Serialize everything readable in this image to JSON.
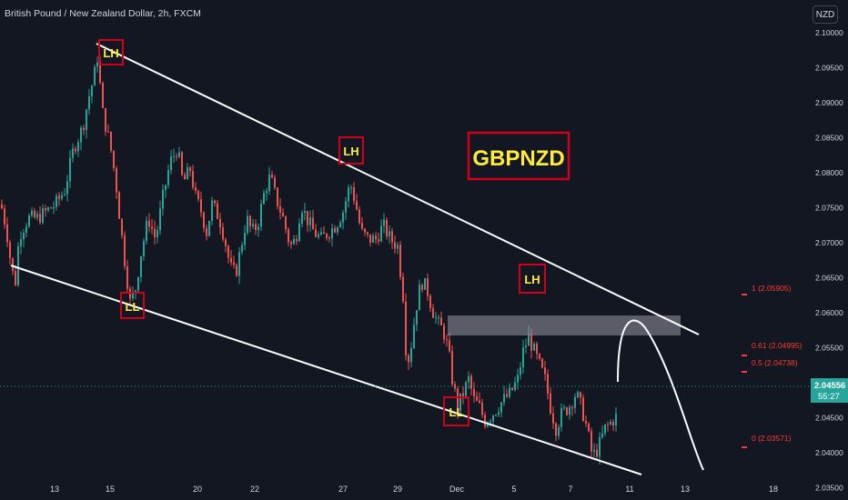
{
  "header": {
    "symbol_title": "British Pound / New Zealand Dollar, 2h, FXCM",
    "currency_button": "NZD"
  },
  "colors": {
    "background": "#131722",
    "up": "#26a69a",
    "down": "#ef5350",
    "text": "#d1d4dc",
    "trendline": "#ffffff",
    "label_box": "#d0021b",
    "label_text": "#ffeb3b",
    "fib_text": "#ff3b30",
    "price_badge": "#26a69a"
  },
  "chart_data": {
    "type": "candlestick",
    "instrument": "GBPNZD",
    "timeframe": "2h",
    "ylim": [
      2.0325,
      2.1025
    ],
    "y_ticks": [
      "2.10000",
      "2.09500",
      "2.09000",
      "2.08500",
      "2.08000",
      "2.07500",
      "2.07000",
      "2.06500",
      "2.06000",
      "2.05500",
      "2.05000",
      "2.04500",
      "2.04000",
      "2.03500"
    ],
    "x_ticks": [
      "13",
      "15",
      "20",
      "22",
      "27",
      "29",
      "Dec",
      "5",
      "7",
      "11",
      "13",
      "18"
    ],
    "last_price": "2.04556",
    "countdown": "55:27",
    "title_annotation": "GBPNZD",
    "swing_labels": [
      {
        "text": "LH",
        "price": 2.0975
      },
      {
        "text": "LL",
        "price": 2.0603
      },
      {
        "text": "LH",
        "price": 2.0803
      },
      {
        "text": "LH",
        "price": 2.0595
      },
      {
        "text": "LL",
        "price": 2.0405
      }
    ],
    "channel_lines": [
      {
        "name": "upper",
        "from": 2.0975,
        "to": 2.0532
      },
      {
        "name": "lower",
        "from": 2.0645,
        "to": 2.0322
      }
    ],
    "supply_zone": {
      "top": 2.056,
      "bottom": 2.053
    },
    "fib_levels": [
      {
        "label": "1 (2.05905)",
        "value": 2.05905
      },
      {
        "label": "0.61 (2.04995)",
        "value": 2.04995
      },
      {
        "label": "0.5 (2.04738)",
        "value": 2.04738
      },
      {
        "label": "0 (2.03571)",
        "value": 2.03571
      }
    ],
    "projection": "rise to channel top then decline",
    "price_anchors": [
      [
        0,
        2.0755
      ],
      [
        6,
        2.072
      ],
      [
        12,
        2.066
      ],
      [
        16,
        2.0645
      ],
      [
        20,
        2.071
      ],
      [
        30,
        2.0735
      ],
      [
        40,
        2.0735
      ],
      [
        50,
        2.0745
      ],
      [
        60,
        2.0755
      ],
      [
        70,
        2.0775
      ],
      [
        80,
        2.0835
      ],
      [
        90,
        2.0865
      ],
      [
        96,
        2.0905
      ],
      [
        102,
        2.0935
      ],
      [
        106,
        2.0965
      ],
      [
        112,
        2.0885
      ],
      [
        120,
        2.084
      ],
      [
        126,
        2.079
      ],
      [
        131,
        2.073
      ],
      [
        136,
        2.0675
      ],
      [
        142,
        2.0615
      ],
      [
        148,
        2.0635
      ],
      [
        154,
        2.0685
      ],
      [
        162,
        2.0735
      ],
      [
        170,
        2.0705
      ],
      [
        178,
        2.0765
      ],
      [
        186,
        2.0815
      ],
      [
        194,
        2.0835
      ],
      [
        200,
        2.0785
      ],
      [
        208,
        2.0805
      ],
      [
        214,
        2.0765
      ],
      [
        220,
        2.0745
      ],
      [
        226,
        2.0715
      ],
      [
        232,
        2.0755
      ],
      [
        240,
        2.0735
      ],
      [
        246,
        2.0705
      ],
      [
        252,
        2.0665
      ],
      [
        258,
        2.0655
      ],
      [
        264,
        2.0695
      ],
      [
        270,
        2.0735
      ],
      [
        276,
        2.0715
      ],
      [
        282,
        2.0725
      ],
      [
        290,
        2.0775
      ],
      [
        296,
        2.0795
      ],
      [
        302,
        2.0765
      ],
      [
        310,
        2.0735
      ],
      [
        318,
        2.0695
      ],
      [
        324,
        2.0705
      ],
      [
        330,
        2.0755
      ],
      [
        336,
        2.0735
      ],
      [
        344,
        2.0715
      ],
      [
        352,
        2.0705
      ],
      [
        360,
        2.0715
      ],
      [
        368,
        2.0725
      ],
      [
        376,
        2.0745
      ],
      [
        384,
        2.0785
      ],
      [
        390,
        2.0755
      ],
      [
        396,
        2.0715
      ],
      [
        404,
        2.0705
      ],
      [
        412,
        2.0705
      ],
      [
        420,
        2.0725
      ],
      [
        428,
        2.0705
      ],
      [
        436,
        2.0695
      ],
      [
        442,
        2.0625
      ],
      [
        446,
        2.0525
      ],
      [
        450,
        2.0545
      ],
      [
        456,
        2.0605
      ],
      [
        462,
        2.0645
      ],
      [
        468,
        2.0635
      ],
      [
        474,
        2.0605
      ],
      [
        480,
        2.0585
      ],
      [
        486,
        2.0575
      ],
      [
        492,
        2.0545
      ],
      [
        496,
        2.0505
      ],
      [
        502,
        2.0465
      ],
      [
        508,
        2.0485
      ],
      [
        514,
        2.0505
      ],
      [
        520,
        2.0475
      ],
      [
        526,
        2.0465
      ],
      [
        532,
        2.0445
      ],
      [
        540,
        2.0455
      ],
      [
        546,
        2.0465
      ],
      [
        552,
        2.0475
      ],
      [
        560,
        2.0485
      ],
      [
        568,
        2.0505
      ],
      [
        574,
        2.0545
      ],
      [
        580,
        2.0565
      ],
      [
        586,
        2.0545
      ],
      [
        592,
        2.0525
      ],
      [
        598,
        2.0505
      ],
      [
        604,
        2.0465
      ],
      [
        610,
        2.0435
      ],
      [
        616,
        2.0455
      ],
      [
        624,
        2.0465
      ],
      [
        632,
        2.0485
      ],
      [
        638,
        2.0465
      ],
      [
        644,
        2.0435
      ],
      [
        650,
        2.0395
      ],
      [
        656,
        2.0405
      ],
      [
        664,
        2.0435
      ],
      [
        672,
        2.0445
      ],
      [
        678,
        2.04556
      ]
    ]
  }
}
